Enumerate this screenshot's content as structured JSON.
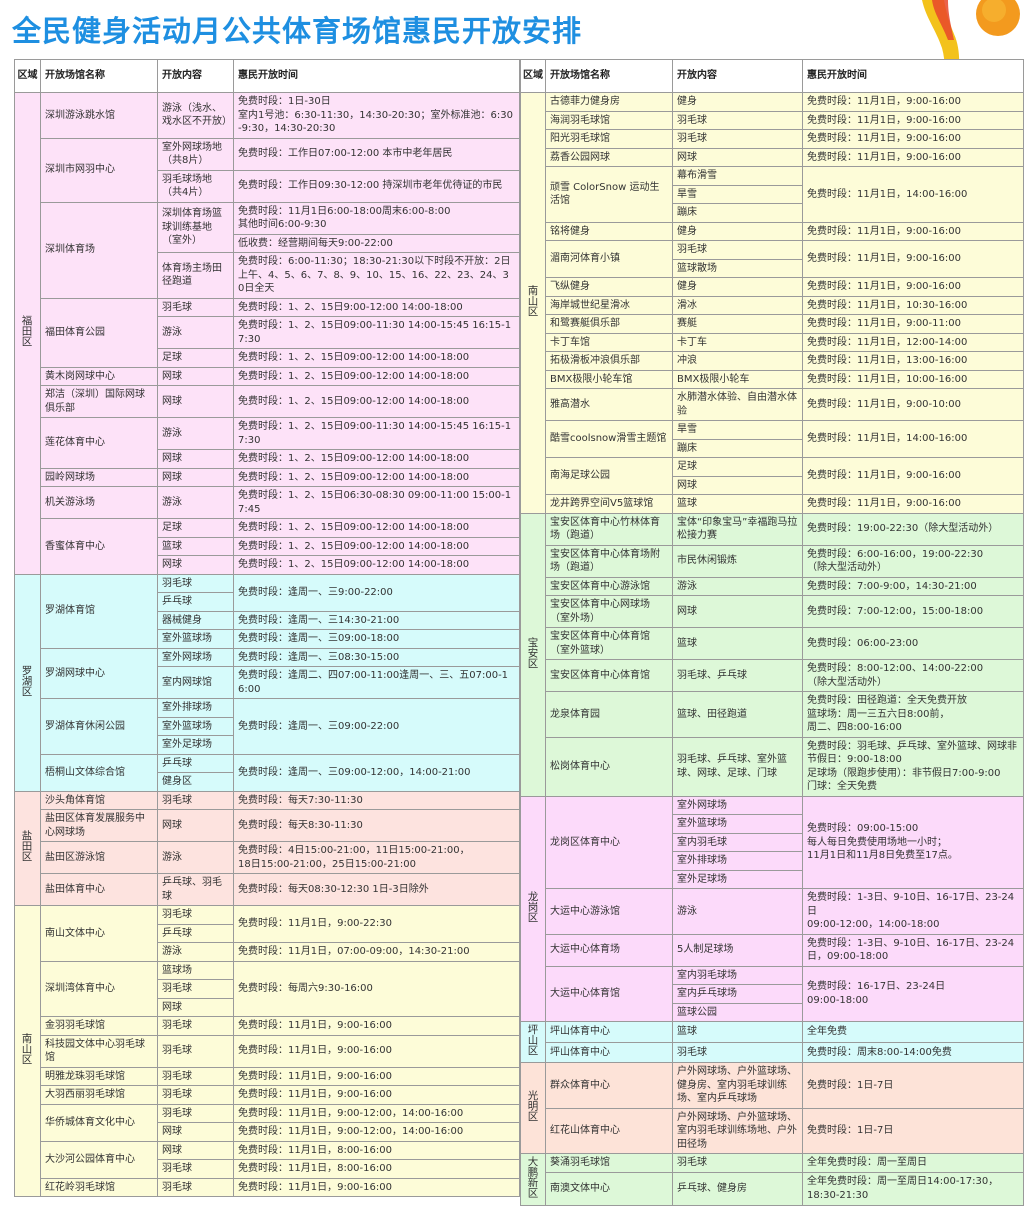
{
  "title": "全民健身活动月公共体育场馆惠民开放安排",
  "header": {
    "region": "区域",
    "venue": "开放场馆名称",
    "content": "开放内容",
    "time": "惠民开放时间"
  },
  "colors": {
    "title": "#1e8fe1",
    "福田区": "#fde2f8",
    "罗湖区": "#d6fbfb",
    "盐田区": "#fde3df",
    "南山区": "#fdfcd8",
    "宝安区": "#ddf8d8",
    "龙岗区": "#fcdafa",
    "坪山区": "#d6fbfb",
    "光明区": "#fde3d8",
    "大鹏新区": "#ddf8d8"
  },
  "left": [
    {
      "region": "福田区",
      "venues": [
        {
          "name": "深圳游泳跳水馆",
          "rows": [
            {
              "c": "游泳（浅水、戏水区不开放）",
              "t": "免费时段：1日-30日\n室内1号池：6:30-11:30，14:30-20:30；室外标准池：6:30-9:30，14:30-20:30"
            }
          ]
        },
        {
          "name": "深圳市网羽中心",
          "rows": [
            {
              "c": "室外网球场地（共8片）",
              "t": "免费时段：工作日07:00-12:00  本市中老年居民"
            },
            {
              "c": "羽毛球场地（共4片）",
              "t": "免费时段：工作日09:30-12:00  持深圳市老年优待证的市民"
            }
          ]
        },
        {
          "name": "深圳体育场",
          "rows": [
            {
              "c": "深圳体育场篮球训练基地（室外）",
              "t": "免费时段：11月1日6:00-18:00周末6:00-8:00\n其他时间6:00-9:30"
            },
            {
              "t": "低收费：经营期间每天9:00-22:00"
            },
            {
              "c": "体育场主场田径跑道",
              "t": "免费时段：6:00-11:30；18:30-21:30以下时段不开放：2日上午、4、5、6、7、8、9、10、15、16、22、23、24、30日全天"
            }
          ]
        },
        {
          "name": "福田体育公园",
          "rows": [
            {
              "c": "羽毛球",
              "t": "免费时段：1、2、15日9:00-12:00  14:00-18:00"
            },
            {
              "c": "游泳",
              "t": "免费时段：1、2、15日09:00-11:30  14:00-15:45  16:15-17:30"
            },
            {
              "c": "足球",
              "t": "免费时段：1、2、15日09:00-12:00  14:00-18:00"
            }
          ]
        },
        {
          "name": "黄木岗网球中心",
          "rows": [
            {
              "c": "网球",
              "t": "免费时段：1、2、15日09:00-12:00  14:00-18:00"
            }
          ]
        },
        {
          "name": "郑洁（深圳）国际网球俱乐部",
          "rows": [
            {
              "c": "网球",
              "t": "免费时段：1、2、15日09:00-12:00  14:00-18:00"
            }
          ]
        },
        {
          "name": "莲花体育中心",
          "rows": [
            {
              "c": "游泳",
              "t": "免费时段：1、2、15日09:00-11:30  14:00-15:45  16:15-17:30"
            },
            {
              "c": "网球",
              "t": "免费时段：1、2、15日09:00-12:00  14:00-18:00"
            }
          ]
        },
        {
          "name": "园岭网球场",
          "rows": [
            {
              "c": "网球",
              "t": "免费时段：1、2、15日09:00-12:00  14:00-18:00"
            }
          ]
        },
        {
          "name": "机关游泳场",
          "rows": [
            {
              "c": "游泳",
              "t": "免费时段：1、2、15日06:30-08:30  09:00-11:00  15:00-17:45"
            }
          ]
        },
        {
          "name": "香蜜体育中心",
          "rows": [
            {
              "c": "足球",
              "t": "免费时段：1、2、15日09:00-12:00  14:00-18:00"
            },
            {
              "c": "篮球",
              "t": "免费时段：1、2、15日09:00-12:00  14:00-18:00"
            },
            {
              "c": "网球",
              "t": "免费时段：1、2、15日09:00-12:00  14:00-18:00"
            }
          ]
        }
      ]
    },
    {
      "region": "罗湖区",
      "venues": [
        {
          "name": "罗湖体育馆",
          "rows": [
            {
              "c": "羽毛球",
              "t": "免费时段：逢周一、三9:00-22:00"
            },
            {
              "c": "乒乓球"
            },
            {
              "c": "器械健身",
              "t": "免费时段：逢周一、三14:30-21:00"
            },
            {
              "c": "室外篮球场",
              "t": "免费时段：逢周一、三09:00-18:00"
            }
          ]
        },
        {
          "name": "罗湖网球中心",
          "rows": [
            {
              "c": "室外网球场",
              "t": "免费时段：逢周一、三08:30-15:00"
            },
            {
              "c": "室内网球馆",
              "t": "免费时段：逢周二、四07:00-11:00逢周一、三、五07:00-16:00"
            }
          ]
        },
        {
          "name": "罗湖体育休闲公园",
          "rows": [
            {
              "c": "室外排球场",
              "t": "免费时段：逢周一、三09:00-22:00"
            },
            {
              "c": "室外篮球场"
            },
            {
              "c": "室外足球场"
            }
          ]
        },
        {
          "name": "梧桐山文体综合馆",
          "rows": [
            {
              "c": "乒乓球",
              "t": "免费时段：逢周一、三09:00-12:00，14:00-21:00"
            },
            {
              "c": "健身区"
            }
          ]
        }
      ]
    },
    {
      "region": "盐田区",
      "venues": [
        {
          "name": "沙头角体育馆",
          "rows": [
            {
              "c": "羽毛球",
              "t": "免费时段：每天7:30-11:30"
            }
          ]
        },
        {
          "name": "盐田区体育发展服务中心网球场",
          "rows": [
            {
              "c": "网球",
              "t": "免费时段：每天8:30-11:30"
            }
          ]
        },
        {
          "name": "盐田区游泳馆",
          "rows": [
            {
              "c": "游泳",
              "t": "免费时段：4日15:00-21:00，11日15:00-21:00，\n18日15:00-21:00，25日15:00-21:00"
            }
          ]
        },
        {
          "name": "盐田体育中心",
          "rows": [
            {
              "c": "乒乓球、羽毛球",
              "t": "免费时段：每天08:30-12:30  1日-3日除外"
            }
          ]
        }
      ]
    },
    {
      "region": "南山区",
      "venues": [
        {
          "name": "南山文体中心",
          "rows": [
            {
              "c": "羽毛球",
              "t": "免费时段：11月1日，9:00-22:30"
            },
            {
              "c": "乒乓球"
            },
            {
              "c": "游泳",
              "t": "免费时段：11月1日，07:00-09:00，14:30-21:00"
            }
          ]
        },
        {
          "name": "深圳湾体育中心",
          "rows": [
            {
              "c": "篮球场",
              "t": "免费时段：每周六9:30-16:00"
            },
            {
              "c": "羽毛球"
            },
            {
              "c": "网球"
            }
          ]
        },
        {
          "name": "金羽羽毛球馆",
          "rows": [
            {
              "c": "羽毛球",
              "t": "免费时段：11月1日，9:00-16:00"
            }
          ]
        },
        {
          "name": "科技园文体中心羽毛球馆",
          "rows": [
            {
              "c": "羽毛球",
              "t": "免费时段：11月1日，9:00-16:00"
            }
          ]
        },
        {
          "name": "明雅龙珠羽毛球馆",
          "rows": [
            {
              "c": "羽毛球",
              "t": "免费时段：11月1日，9:00-16:00"
            }
          ]
        },
        {
          "name": "大羽西丽羽毛球馆",
          "rows": [
            {
              "c": "羽毛球",
              "t": "免费时段：11月1日，9:00-16:00"
            }
          ]
        },
        {
          "name": "华侨城体育文化中心",
          "rows": [
            {
              "c": "羽毛球",
              "t": "免费时段：11月1日，9:00-12:00，14:00-16:00"
            },
            {
              "c": "网球",
              "t": "免费时段：11月1日，9:00-12:00，14:00-16:00"
            }
          ]
        },
        {
          "name": "大沙河公园体育中心",
          "rows": [
            {
              "c": "网球",
              "t": "免费时段：11月1日，8:00-16:00"
            },
            {
              "c": "羽毛球",
              "t": "免费时段：11月1日，8:00-16:00"
            }
          ]
        },
        {
          "name": "红花岭羽毛球馆",
          "rows": [
            {
              "c": "羽毛球",
              "t": "免费时段：11月1日，9:00-16:00"
            }
          ]
        }
      ]
    }
  ],
  "right": [
    {
      "region": "南山区",
      "venues": [
        {
          "name": "古德菲力健身房",
          "rows": [
            {
              "c": "健身",
              "t": "免费时段：11月1日，9:00-16:00"
            }
          ]
        },
        {
          "name": "海润羽毛球馆",
          "rows": [
            {
              "c": "羽毛球",
              "t": "免费时段：11月1日，9:00-16:00"
            }
          ]
        },
        {
          "name": "阳光羽毛球馆",
          "rows": [
            {
              "c": "羽毛球",
              "t": "免费时段：11月1日，9:00-16:00"
            }
          ]
        },
        {
          "name": "荔香公园网球",
          "rows": [
            {
              "c": "网球",
              "t": "免费时段：11月1日，9:00-16:00"
            }
          ]
        },
        {
          "name": "顽雪 ColorSnow 运动生活馆",
          "rows": [
            {
              "c": "幕布滑雪",
              "t": "免费时段：11月1日，14:00-16:00"
            },
            {
              "c": "旱雪"
            },
            {
              "c": "蹦床"
            }
          ]
        },
        {
          "name": "铭将健身",
          "rows": [
            {
              "c": "健身",
              "t": "免费时段：11月1日，9:00-16:00"
            }
          ]
        },
        {
          "name": "湄南河体育小镇",
          "rows": [
            {
              "c": "羽毛球",
              "t": "免费时段：11月1日，9:00-16:00"
            },
            {
              "c": "篮球散场"
            }
          ]
        },
        {
          "name": "飞纵健身",
          "rows": [
            {
              "c": "健身",
              "t": "免费时段：11月1日，9:00-16:00"
            }
          ]
        },
        {
          "name": "海岸城世纪星滑冰",
          "rows": [
            {
              "c": "滑冰",
              "t": "免费时段：11月1日，10:30-16:00"
            }
          ]
        },
        {
          "name": "和鹭赛艇俱乐部",
          "rows": [
            {
              "c": "赛艇",
              "t": "免费时段：11月1日，9:00-11:00"
            }
          ]
        },
        {
          "name": "卡丁车馆",
          "rows": [
            {
              "c": "卡丁车",
              "t": "免费时段：11月1日，12:00-14:00"
            }
          ]
        },
        {
          "name": "拓极滑板冲浪俱乐部",
          "rows": [
            {
              "c": "冲浪",
              "t": "免费时段：11月1日，13:00-16:00"
            }
          ]
        },
        {
          "name": "BMX极限小轮车馆",
          "rows": [
            {
              "c": "BMX极限小轮车",
              "t": "免费时段：11月1日，10:00-16:00"
            }
          ]
        },
        {
          "name": "雅高潜水",
          "rows": [
            {
              "c": "水肺潜水体验、自由潜水体验",
              "t": "免费时段：11月1日，9:00-10:00"
            }
          ]
        },
        {
          "name": "酷雪coolsnow滑雪主题馆",
          "rows": [
            {
              "c": "旱雪",
              "t": "免费时段：11月1日，14:00-16:00"
            },
            {
              "c": "蹦床"
            }
          ]
        },
        {
          "name": "南海足球公园",
          "rows": [
            {
              "c": "足球",
              "t": "免费时段：11月1日，9:00-16:00"
            },
            {
              "c": "网球"
            }
          ]
        },
        {
          "name": "龙井跨界空间V5篮球馆",
          "rows": [
            {
              "c": "篮球",
              "t": "免费时段：11月1日，9:00-16:00"
            }
          ]
        }
      ]
    },
    {
      "region": "宝安区",
      "venues": [
        {
          "name": "宝安区体育中心竹林体育场（跑道）",
          "rows": [
            {
              "c": "宝体“印象宝马”幸福跑马拉松接力赛",
              "t": "免费时段：19:00-22:30（除大型活动外）"
            }
          ]
        },
        {
          "name": "宝安区体育中心体育场附场（跑道）",
          "rows": [
            {
              "c": "市民休闲锻炼",
              "t": "免费时段：6:00-16:00，19:00-22:30\n（除大型活动外）"
            }
          ]
        },
        {
          "name": "宝安区体育中心游泳馆",
          "rows": [
            {
              "c": "游泳",
              "t": "免费时段：7:00-9:00，14:30-21:00"
            }
          ]
        },
        {
          "name": "宝安区体育中心网球场（室外场）",
          "rows": [
            {
              "c": "网球",
              "t": "免费时段：7:00-12:00，15:00-18:00"
            }
          ]
        },
        {
          "name": "宝安区体育中心体育馆（室外篮球）",
          "rows": [
            {
              "c": "篮球",
              "t": "免费时段：06:00-23:00"
            }
          ]
        },
        {
          "name": "宝安区体育中心体育馆",
          "rows": [
            {
              "c": "羽毛球、乒乓球",
              "t": "免费时段：8:00-12:00、14:00-22:00\n（除大型活动外）"
            }
          ]
        },
        {
          "name": "龙泉体育园",
          "rows": [
            {
              "c": "篮球、田径跑道",
              "t": "免费时段：田径跑道：全天免费开放\n篮球场：周一三五六日8:00前，\n周二、四8:00-16:00"
            }
          ]
        },
        {
          "name": "松岗体育中心",
          "rows": [
            {
              "c": "羽毛球、乒乓球、室外篮球、网球、足球、门球",
              "t": "免费时段：羽毛球、乒乓球、室外篮球、网球非节假日：9:00-18:00\n足球场（限跑步使用）：非节假日7:00-9:00\n门球：全天免费"
            }
          ]
        }
      ]
    },
    {
      "region": "龙岗区",
      "venues": [
        {
          "name": "龙岗区体育中心",
          "rows": [
            {
              "c": "室外网球场",
              "t": "免费时段：09:00-15:00\n每人每日免费使用场地一小时；\n11月1日和11月8日免费至17点。"
            },
            {
              "c": "室外篮球场"
            },
            {
              "c": "室内羽毛球"
            },
            {
              "c": "室外排球场"
            },
            {
              "c": "室外足球场"
            }
          ]
        },
        {
          "name": "大运中心游泳馆",
          "rows": [
            {
              "c": "游泳",
              "t": "免费时段：1-3日、9-10日、16-17日、23-24日\n09:00-12:00，14:00-18:00"
            }
          ]
        },
        {
          "name": "大运中心体育场",
          "rows": [
            {
              "c": "5人制足球场",
              "t": "免费时段：1-3日、9-10日、16-17日、23-24日，09:00-18:00"
            }
          ]
        },
        {
          "name": "大运中心体育馆",
          "rows": [
            {
              "c": "室内羽毛球场",
              "t": "免费时段：16-17日、23-24日\n09:00-18:00"
            },
            {
              "c": "室内乒乓球场"
            },
            {
              "c": "篮球公园"
            }
          ]
        }
      ]
    },
    {
      "region": "坪山区",
      "venues": [
        {
          "name": "坪山体育中心",
          "rows": [
            {
              "c": "篮球",
              "t": "全年免费"
            }
          ]
        },
        {
          "name": "坪山体育中心",
          "rows": [
            {
              "c": "羽毛球",
              "t": "免费时段：周末8:00-14:00免费"
            }
          ]
        }
      ]
    },
    {
      "region": "光明区",
      "venues": [
        {
          "name": "群众体育中心",
          "rows": [
            {
              "c": "户外网球场、户外篮球场、健身房、室内羽毛球训练场、室内乒乓球场",
              "t": "免费时段：1日-7日"
            }
          ]
        },
        {
          "name": "红花山体育中心",
          "rows": [
            {
              "c": "户外网球场、户外篮球场、室内羽毛球训练场地、户外田径场",
              "t": "免费时段：1日-7日"
            }
          ]
        }
      ]
    },
    {
      "region": "大鹏新区",
      "venues": [
        {
          "name": "葵涌羽毛球馆",
          "rows": [
            {
              "c": "羽毛球",
              "t": "全年免费时段：周一至周日"
            }
          ]
        },
        {
          "name": "南澳文体中心",
          "rows": [
            {
              "c": "乒乓球、健身房",
              "t": "全年免费时段：周一至周日14:00-17:30，\n18:30-21:30"
            }
          ]
        }
      ]
    }
  ]
}
